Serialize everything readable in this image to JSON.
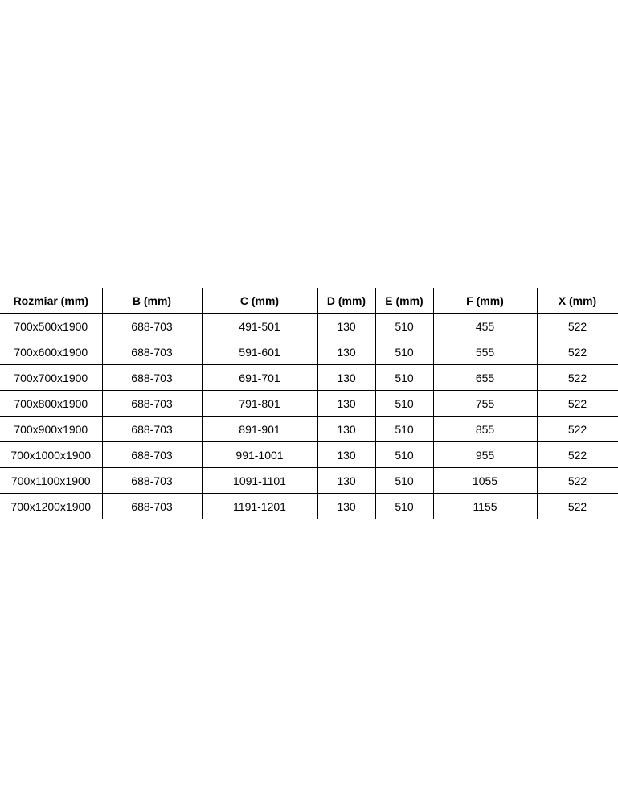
{
  "table": {
    "headers": [
      "Rozmiar (mm)",
      "B (mm)",
      "C (mm)",
      "D (mm)",
      "E (mm)",
      "F (mm)",
      "X (mm)"
    ],
    "rows": [
      [
        "700x500x1900",
        "688-703",
        "491-501",
        "130",
        "510",
        "455",
        "522"
      ],
      [
        "700x600x1900",
        "688-703",
        "591-601",
        "130",
        "510",
        "555",
        "522"
      ],
      [
        "700x700x1900",
        "688-703",
        "691-701",
        "130",
        "510",
        "655",
        "522"
      ],
      [
        "700x800x1900",
        "688-703",
        "791-801",
        "130",
        "510",
        "755",
        "522"
      ],
      [
        "700x900x1900",
        "688-703",
        "891-901",
        "130",
        "510",
        "855",
        "522"
      ],
      [
        "700x1000x1900",
        "688-703",
        "991-1001",
        "130",
        "510",
        "955",
        "522"
      ],
      [
        "700x1100x1900",
        "688-703",
        "1091-1101",
        "130",
        "510",
        "1055",
        "522"
      ],
      [
        "700x1200x1900",
        "688-703",
        "1191-1201",
        "130",
        "510",
        "1155",
        "522"
      ]
    ]
  }
}
